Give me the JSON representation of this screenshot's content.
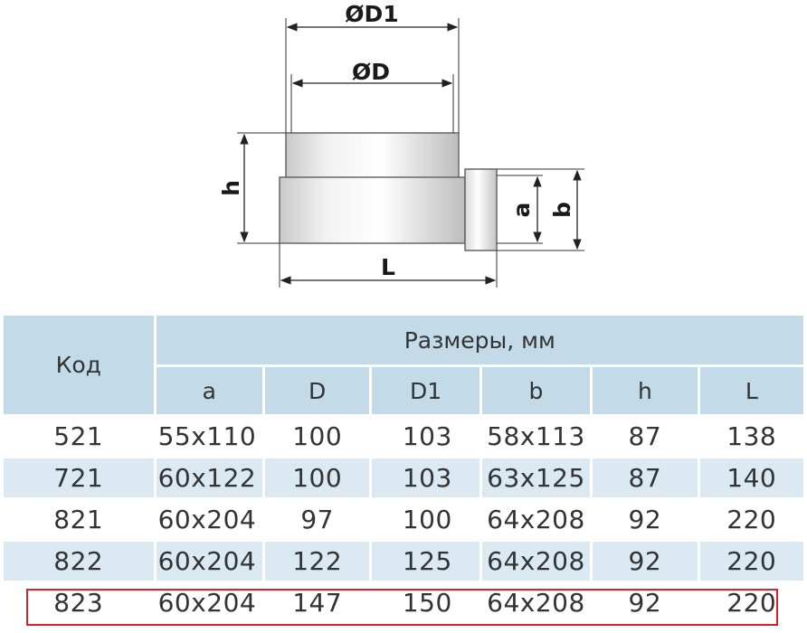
{
  "drawing": {
    "dim_D1": "ØD1",
    "dim_D": "ØD",
    "dim_h": "h",
    "dim_a": "a",
    "dim_b": "b",
    "dim_L": "L"
  },
  "table": {
    "code_header": "Код",
    "dims_header": "Размеры, мм",
    "columns": [
      "a",
      "D",
      "D1",
      "b",
      "h",
      "L"
    ],
    "rows": [
      {
        "code": "521",
        "a": "55x110",
        "D": "100",
        "D1": "103",
        "b": "58x113",
        "h": "87",
        "L": "138"
      },
      {
        "code": "721",
        "a": "60x122",
        "D": "100",
        "D1": "103",
        "b": "63x125",
        "h": "87",
        "L": "140"
      },
      {
        "code": "821",
        "a": "60x204",
        "D": "97",
        "D1": "100",
        "b": "64x208",
        "h": "92",
        "L": "220"
      },
      {
        "code": "822",
        "a": "60x204",
        "D": "122",
        "D1": "125",
        "b": "64x208",
        "h": "92",
        "L": "220"
      },
      {
        "code": "823",
        "a": "60x204",
        "D": "147",
        "D1": "150",
        "b": "64x208",
        "h": "92",
        "L": "220"
      }
    ],
    "highlight_color": "#d4232a",
    "header_color": "#c3dbe9",
    "stripe_color": "#dbe9f2"
  }
}
